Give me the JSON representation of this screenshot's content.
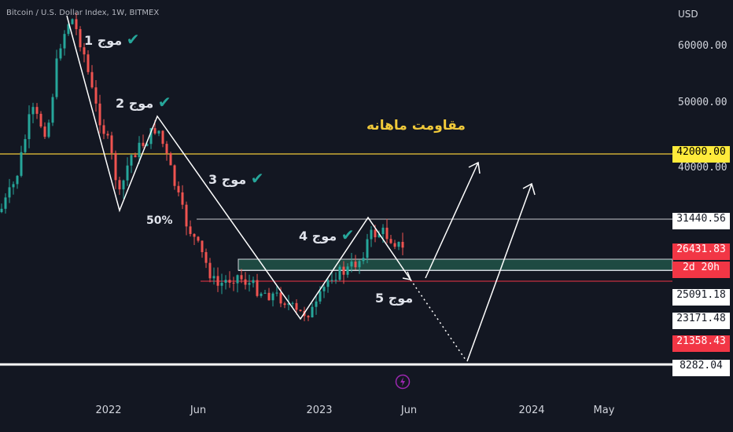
{
  "header": {
    "symbol": "Bitcoin / U.S. Dollar Index, 1W, BITMEX",
    "currency": "USD"
  },
  "price_axis": {
    "ticks": [
      "60000.00",
      "50000.00",
      "40000.00"
    ],
    "badges": [
      {
        "text": "42000.00",
        "bg": "#ffeb3b",
        "fg": "#000000"
      },
      {
        "text": "31440.56",
        "bg": "#ffffff",
        "fg": "#131722"
      },
      {
        "text": "26431.83",
        "bg": "#f23645",
        "fg": "#ffffff"
      },
      {
        "text": "2d 20h",
        "bg": "#f23645",
        "fg": "#ffffff"
      },
      {
        "text": "25091.18",
        "bg": "#ffffff",
        "fg": "#131722"
      },
      {
        "text": "23171.48",
        "bg": "#ffffff",
        "fg": "#131722"
      },
      {
        "text": "21358.43",
        "bg": "#f23645",
        "fg": "#ffffff"
      },
      {
        "text": "8282.04",
        "bg": "#ffffff",
        "fg": "#131722"
      }
    ]
  },
  "time_axis": [
    "2022",
    "Jun",
    "2023",
    "Jun",
    "2024",
    "May"
  ],
  "annotations": {
    "wave1": "موج 1",
    "wave2": "موج 2",
    "wave3": "موج 3",
    "wave4": "موج 4",
    "wave5": "موج 5",
    "fib": "50%",
    "resistance": "مقاومت ماهانه"
  },
  "icons": {
    "check": "check-icon",
    "bolt": "lightning-icon"
  },
  "colors": {
    "background": "#131722",
    "up": "#26a69a",
    "down": "#ef5350",
    "resistance_line": "#f0c93a",
    "support_zone": "#1e4a42"
  }
}
